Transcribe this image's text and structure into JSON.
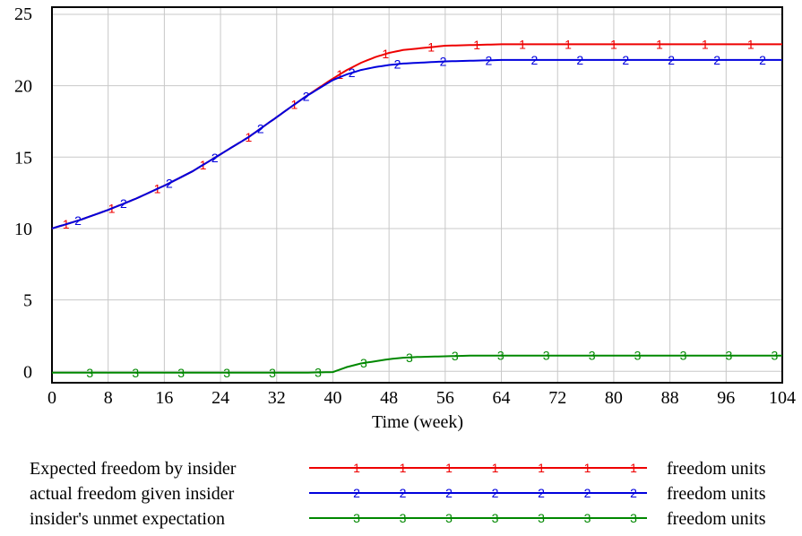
{
  "chart_data": {
    "type": "line",
    "xlabel": "Time (week)",
    "ylabel": "",
    "xlim": [
      0,
      104
    ],
    "ylim": [
      -0.8,
      25.5
    ],
    "xticks": [
      "0",
      "8",
      "16",
      "24",
      "32",
      "40",
      "48",
      "56",
      "64",
      "72",
      "80",
      "88",
      "96",
      "104"
    ],
    "yticks": [
      "0",
      "5",
      "10",
      "15",
      "20",
      "25"
    ],
    "grid": true,
    "legend_position": "bottom",
    "x": [
      0,
      4,
      8,
      12,
      16,
      20,
      24,
      28,
      32,
      36,
      40,
      42,
      44,
      46,
      48,
      50,
      52,
      56,
      60,
      64,
      72,
      80,
      88,
      96,
      104
    ],
    "series": [
      {
        "name": "Expected freedom by insider",
        "marker": "1",
        "color": "#ee0000",
        "units": "freedom units",
        "values": [
          10.0,
          10.6,
          11.3,
          12.1,
          13.0,
          14.0,
          15.2,
          16.4,
          17.8,
          19.2,
          20.5,
          21.1,
          21.6,
          22.0,
          22.3,
          22.5,
          22.6,
          22.8,
          22.85,
          22.9,
          22.9,
          22.9,
          22.9,
          22.9,
          22.9
        ]
      },
      {
        "name": "actual freedom given insider",
        "marker": "2",
        "color": "#0000dd",
        "units": "freedom units",
        "values": [
          10.0,
          10.6,
          11.3,
          12.1,
          13.0,
          14.0,
          15.2,
          16.4,
          17.8,
          19.2,
          20.4,
          20.8,
          21.1,
          21.3,
          21.45,
          21.55,
          21.6,
          21.7,
          21.75,
          21.8,
          21.8,
          21.8,
          21.8,
          21.8,
          21.8
        ]
      },
      {
        "name": "insider's unmet expectation",
        "marker": "3",
        "color": "#008800",
        "units": "freedom units",
        "values": [
          -0.1,
          -0.1,
          -0.1,
          -0.1,
          -0.1,
          -0.1,
          -0.1,
          -0.1,
          -0.1,
          -0.1,
          -0.05,
          0.3,
          0.55,
          0.7,
          0.85,
          0.95,
          1.0,
          1.05,
          1.1,
          1.1,
          1.1,
          1.1,
          1.1,
          1.1,
          1.1
        ]
      }
    ]
  }
}
